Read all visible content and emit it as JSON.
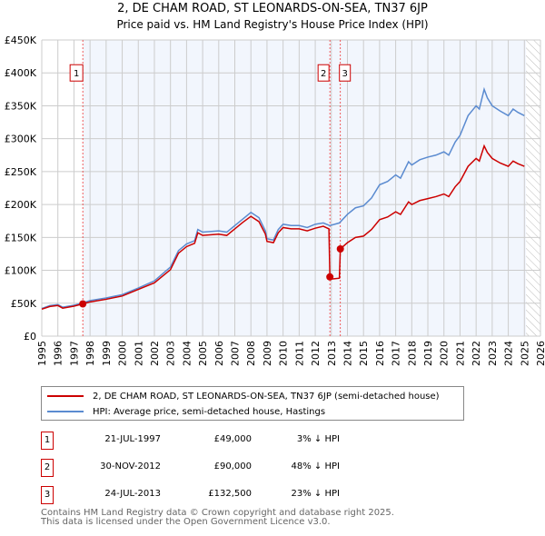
{
  "title": "2, DE CHAM ROAD, ST LEONARDS-ON-SEA, TN37 6JP",
  "subtitle": "Price paid vs. HM Land Registry's House Price Index (HPI)",
  "chart_data": {
    "type": "line",
    "ylim": [
      0,
      450000
    ],
    "xlim": [
      1995,
      2026
    ],
    "y_ticks": [
      {
        "v": 0,
        "label": "£0"
      },
      {
        "v": 50000,
        "label": "£50K"
      },
      {
        "v": 100000,
        "label": "£100K"
      },
      {
        "v": 150000,
        "label": "£150K"
      },
      {
        "v": 200000,
        "label": "£200K"
      },
      {
        "v": 250000,
        "label": "£250K"
      },
      {
        "v": 300000,
        "label": "£300K"
      },
      {
        "v": 350000,
        "label": "£350K"
      },
      {
        "v": 400000,
        "label": "£400K"
      },
      {
        "v": 450000,
        "label": "£450K"
      }
    ],
    "x_ticks": [
      "1995",
      "1996",
      "1997",
      "1998",
      "1999",
      "2000",
      "2001",
      "2002",
      "2003",
      "2004",
      "2005",
      "2006",
      "2007",
      "2008",
      "2009",
      "2010",
      "2011",
      "2012",
      "2013",
      "2014",
      "2015",
      "2016",
      "2017",
      "2018",
      "2019",
      "2020",
      "2021",
      "2022",
      "2023",
      "2024",
      "2025",
      "2026"
    ],
    "forecast_start": 2025.1,
    "series": [
      {
        "name": "2, DE CHAM ROAD, ST LEONARDS-ON-SEA, TN37 6JP (semi-detached house)",
        "color": "#cc0000",
        "points": [
          [
            1995,
            41000
          ],
          [
            1995.5,
            45000
          ],
          [
            1996,
            46500
          ],
          [
            1996.3,
            42500
          ],
          [
            1997,
            45500
          ],
          [
            1997.55,
            49000
          ],
          [
            1998,
            52000
          ],
          [
            1999,
            56000
          ],
          [
            2000,
            61000
          ],
          [
            2001,
            71000
          ],
          [
            2002,
            81000
          ],
          [
            2003,
            101000
          ],
          [
            2003.5,
            126000
          ],
          [
            2004,
            136000
          ],
          [
            2004.5,
            141000
          ],
          [
            2004.7,
            157000
          ],
          [
            2005,
            153000
          ],
          [
            2006,
            155000
          ],
          [
            2006.5,
            153000
          ],
          [
            2007,
            163000
          ],
          [
            2007.5,
            173000
          ],
          [
            2008,
            182000
          ],
          [
            2008.5,
            174000
          ],
          [
            2008.9,
            155000
          ],
          [
            2009,
            144000
          ],
          [
            2009.4,
            142000
          ],
          [
            2009.7,
            157000
          ],
          [
            2010,
            165000
          ],
          [
            2010.5,
            163000
          ],
          [
            2011,
            163000
          ],
          [
            2011.5,
            160000
          ],
          [
            2012,
            164000
          ],
          [
            2012.5,
            167000
          ],
          [
            2012.85,
            163000
          ],
          [
            2012.91,
            90000
          ],
          [
            2013.1,
            87000
          ],
          [
            2013.5,
            88000
          ],
          [
            2013.56,
            132500
          ],
          [
            2014,
            142000
          ],
          [
            2014.5,
            150000
          ],
          [
            2015,
            152000
          ],
          [
            2015.5,
            162000
          ],
          [
            2016,
            177000
          ],
          [
            2016.5,
            181000
          ],
          [
            2017,
            189000
          ],
          [
            2017.3,
            185000
          ],
          [
            2017.8,
            204000
          ],
          [
            2018,
            200000
          ],
          [
            2018.5,
            206000
          ],
          [
            2019,
            209000
          ],
          [
            2019.5,
            212000
          ],
          [
            2020,
            216000
          ],
          [
            2020.3,
            212000
          ],
          [
            2020.7,
            227000
          ],
          [
            2021,
            235000
          ],
          [
            2021.5,
            258000
          ],
          [
            2022,
            270000
          ],
          [
            2022.2,
            266000
          ],
          [
            2022.5,
            289000
          ],
          [
            2022.7,
            279000
          ],
          [
            2023,
            270000
          ],
          [
            2023.5,
            263000
          ],
          [
            2024,
            258000
          ],
          [
            2024.3,
            266000
          ],
          [
            2024.6,
            262000
          ],
          [
            2025,
            258000
          ]
        ]
      },
      {
        "name": "HPI: Average price, semi-detached house, Hastings",
        "color": "#5b8bd0",
        "points": [
          [
            1995,
            42000
          ],
          [
            1995.5,
            46500
          ],
          [
            1996,
            48000
          ],
          [
            1996.3,
            44000
          ],
          [
            1997,
            47000
          ],
          [
            1997.55,
            50500
          ],
          [
            1998,
            54000
          ],
          [
            1999,
            58000
          ],
          [
            2000,
            63000
          ],
          [
            2001,
            73000
          ],
          [
            2002,
            84000
          ],
          [
            2003,
            105000
          ],
          [
            2003.5,
            130000
          ],
          [
            2004,
            140000
          ],
          [
            2004.5,
            145000
          ],
          [
            2004.7,
            162000
          ],
          [
            2005,
            158000
          ],
          [
            2006,
            160000
          ],
          [
            2006.5,
            158000
          ],
          [
            2007,
            168000
          ],
          [
            2007.5,
            178000
          ],
          [
            2008,
            188000
          ],
          [
            2008.5,
            180000
          ],
          [
            2008.9,
            160000
          ],
          [
            2009,
            148000
          ],
          [
            2009.4,
            146000
          ],
          [
            2009.7,
            162000
          ],
          [
            2010,
            170000
          ],
          [
            2010.5,
            168000
          ],
          [
            2011,
            168000
          ],
          [
            2011.5,
            165000
          ],
          [
            2012,
            170000
          ],
          [
            2012.5,
            172000
          ],
          [
            2012.9,
            168000
          ],
          [
            2013.5,
            172000
          ],
          [
            2014,
            185000
          ],
          [
            2014.5,
            195000
          ],
          [
            2015,
            198000
          ],
          [
            2015.5,
            210000
          ],
          [
            2016,
            230000
          ],
          [
            2016.5,
            235000
          ],
          [
            2017,
            245000
          ],
          [
            2017.3,
            240000
          ],
          [
            2017.8,
            265000
          ],
          [
            2018,
            260000
          ],
          [
            2018.5,
            268000
          ],
          [
            2019,
            272000
          ],
          [
            2019.5,
            275000
          ],
          [
            2020,
            280000
          ],
          [
            2020.3,
            275000
          ],
          [
            2020.7,
            295000
          ],
          [
            2021,
            305000
          ],
          [
            2021.5,
            335000
          ],
          [
            2022,
            350000
          ],
          [
            2022.2,
            345000
          ],
          [
            2022.5,
            375000
          ],
          [
            2022.7,
            362000
          ],
          [
            2023,
            350000
          ],
          [
            2023.5,
            342000
          ],
          [
            2024,
            335000
          ],
          [
            2024.3,
            345000
          ],
          [
            2024.6,
            340000
          ],
          [
            2025,
            335000
          ]
        ]
      }
    ],
    "sales": [
      {
        "label": "1",
        "x": 1997.55,
        "y": 49000
      },
      {
        "label": "2",
        "x": 2012.91,
        "y": 90000
      },
      {
        "label": "3",
        "x": 2013.56,
        "y": 132500
      }
    ]
  },
  "legend": {
    "red": "2, DE CHAM ROAD, ST LEONARDS-ON-SEA, TN37 6JP (semi-detached house)",
    "blue": "HPI: Average price, semi-detached house, Hastings"
  },
  "transactions": [
    {
      "n": "1",
      "date": "21-JUL-1997",
      "price": "£49,000",
      "hpi": "3% ↓ HPI"
    },
    {
      "n": "2",
      "date": "30-NOV-2012",
      "price": "£90,000",
      "hpi": "48% ↓ HPI"
    },
    {
      "n": "3",
      "date": "24-JUL-2013",
      "price": "£132,500",
      "hpi": "23% ↓ HPI"
    }
  ],
  "footer": [
    "Contains HM Land Registry data © Crown copyright and database right 2025.",
    "This data is licensed under the Open Government Licence v3.0."
  ]
}
